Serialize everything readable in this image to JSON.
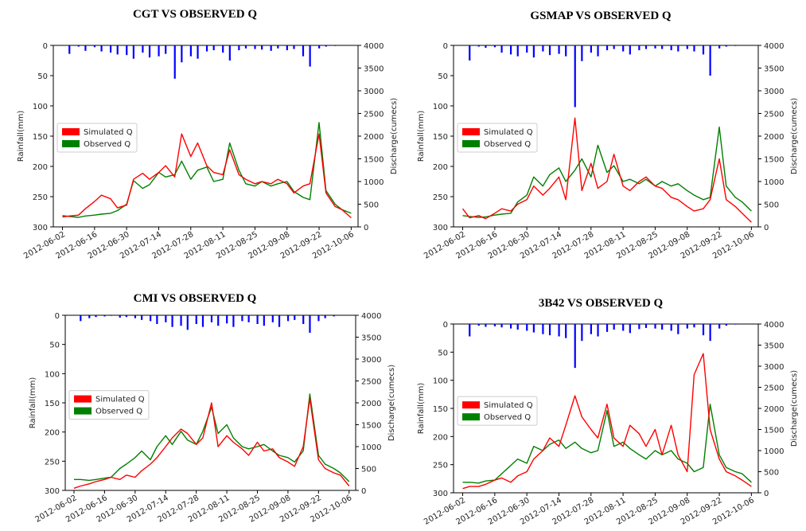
{
  "x_ticks": [
    "2012-06-02",
    "2012-06-16",
    "2012-06-30",
    "2012-07-14",
    "2012-07-28",
    "2012-08-11",
    "2012-08-25",
    "2012-09-08",
    "2012-09-22",
    "2012-10-06"
  ],
  "y_left_ticks": [
    "0",
    "50",
    "100",
    "150",
    "200",
    "250",
    "300"
  ],
  "y_right_ticks": [
    "0",
    "500",
    "1000",
    "1500",
    "2000",
    "2500",
    "3000",
    "3500",
    "4000"
  ],
  "colors": {
    "rain": "#0000ff",
    "simulated": "#ff0000",
    "observed": "#008000"
  },
  "chart_data": [
    {
      "type": "line",
      "title": "CGT VS OBSERVED Q",
      "ylabel": "Rainfall(mm)",
      "y2label": "Discharge(cumecs)",
      "legend": "center-left",
      "ylim": [
        300,
        0
      ],
      "y2lim": [
        0,
        4000
      ],
      "x": [
        "2012-06-02",
        "2012-06-05",
        "2012-06-09",
        "2012-06-12",
        "2012-06-16",
        "2012-06-19",
        "2012-06-23",
        "2012-06-26",
        "2012-06-30",
        "2012-07-03",
        "2012-07-07",
        "2012-07-10",
        "2012-07-14",
        "2012-07-17",
        "2012-07-21",
        "2012-07-24",
        "2012-07-28",
        "2012-07-31",
        "2012-08-04",
        "2012-08-07",
        "2012-08-11",
        "2012-08-14",
        "2012-08-18",
        "2012-08-21",
        "2012-08-25",
        "2012-08-28",
        "2012-09-01",
        "2012-09-04",
        "2012-09-08",
        "2012-09-11",
        "2012-09-15",
        "2012-09-18",
        "2012-09-22",
        "2012-09-25",
        "2012-09-29",
        "2012-10-02",
        "2012-10-06"
      ],
      "series": [
        {
          "name": "Simulated Q",
          "values": [
            220,
            240,
            260,
            400,
            560,
            700,
            620,
            420,
            480,
            1050,
            1180,
            1050,
            1200,
            1350,
            1100,
            2050,
            1550,
            1850,
            1350,
            1200,
            1150,
            1700,
            1150,
            1050,
            950,
            1000,
            950,
            1050,
            950,
            750,
            900,
            950,
            2050,
            750,
            450,
            380,
            200
          ]
        },
        {
          "name": "Observed Q",
          "values": [
            250,
            230,
            210,
            240,
            260,
            280,
            300,
            360,
            500,
            1020,
            850,
            930,
            1200,
            1100,
            1150,
            1450,
            1050,
            1250,
            1320,
            1000,
            1050,
            1850,
            1250,
            950,
            900,
            1000,
            900,
            950,
            1000,
            780,
            650,
            600,
            2300,
            800,
            500,
            380,
            300
          ]
        },
        {
          "name": "Rainfall",
          "values": [
            0,
            14,
            2,
            9,
            3,
            10,
            12,
            15,
            16,
            22,
            12,
            20,
            18,
            14,
            55,
            28,
            18,
            22,
            10,
            8,
            12,
            25,
            8,
            5,
            6,
            7,
            9,
            5,
            8,
            6,
            18,
            35,
            5,
            2,
            1,
            0,
            0
          ]
        }
      ]
    },
    {
      "type": "line",
      "title": "GSMAP VS OBSERVED Q",
      "ylabel": "Rainfall(mm)",
      "y2label": "Discharge(cumecs)",
      "legend": "center-left",
      "ylim": [
        300,
        0
      ],
      "y2lim": [
        0,
        4000
      ],
      "x": [
        "2012-06-02",
        "2012-06-05",
        "2012-06-09",
        "2012-06-12",
        "2012-06-16",
        "2012-06-19",
        "2012-06-23",
        "2012-06-26",
        "2012-06-30",
        "2012-07-03",
        "2012-07-07",
        "2012-07-10",
        "2012-07-14",
        "2012-07-17",
        "2012-07-21",
        "2012-07-24",
        "2012-07-28",
        "2012-07-31",
        "2012-08-04",
        "2012-08-07",
        "2012-08-11",
        "2012-08-14",
        "2012-08-18",
        "2012-08-21",
        "2012-08-25",
        "2012-08-28",
        "2012-09-01",
        "2012-09-04",
        "2012-09-08",
        "2012-09-11",
        "2012-09-15",
        "2012-09-18",
        "2012-09-22",
        "2012-09-25",
        "2012-09-29",
        "2012-10-02",
        "2012-10-06"
      ],
      "series": [
        {
          "name": "Simulated Q",
          "values": [
            400,
            200,
            250,
            180,
            300,
            400,
            350,
            500,
            600,
            900,
            700,
            850,
            1100,
            600,
            2400,
            800,
            1400,
            850,
            1000,
            1600,
            900,
            800,
            1000,
            1100,
            900,
            850,
            650,
            600,
            450,
            350,
            400,
            600,
            1500,
            600,
            450,
            300,
            100
          ]
        },
        {
          "name": "Observed Q",
          "values": [
            250,
            230,
            210,
            220,
            260,
            280,
            300,
            550,
            700,
            1100,
            900,
            1150,
            1300,
            1000,
            1250,
            1500,
            1100,
            1800,
            1200,
            1350,
            1000,
            1050,
            950,
            1050,
            900,
            1000,
            900,
            950,
            800,
            700,
            600,
            650,
            2200,
            900,
            650,
            550,
            350
          ]
        },
        {
          "name": "Rainfall",
          "values": [
            0,
            25,
            2,
            4,
            3,
            12,
            15,
            18,
            12,
            20,
            10,
            16,
            14,
            18,
            102,
            26,
            12,
            18,
            8,
            6,
            10,
            15,
            8,
            6,
            5,
            6,
            8,
            10,
            6,
            10,
            15,
            50,
            5,
            2,
            1,
            0,
            0
          ]
        }
      ]
    },
    {
      "type": "line",
      "title": "CMI VS OBSERVED Q",
      "ylabel": "Rainfall(mm)",
      "y2label": "Discharge(cumecs)",
      "legend": "center-left",
      "ylim": [
        300,
        0
      ],
      "y2lim": [
        0,
        4000
      ],
      "x": [
        "2012-06-02",
        "2012-06-05",
        "2012-06-09",
        "2012-06-12",
        "2012-06-16",
        "2012-06-19",
        "2012-06-23",
        "2012-06-26",
        "2012-06-30",
        "2012-07-03",
        "2012-07-07",
        "2012-07-10",
        "2012-07-14",
        "2012-07-17",
        "2012-07-21",
        "2012-07-24",
        "2012-07-28",
        "2012-07-31",
        "2012-08-04",
        "2012-08-07",
        "2012-08-11",
        "2012-08-14",
        "2012-08-18",
        "2012-08-21",
        "2012-08-25",
        "2012-08-28",
        "2012-09-01",
        "2012-09-04",
        "2012-09-08",
        "2012-09-11",
        "2012-09-15",
        "2012-09-18",
        "2012-09-22",
        "2012-09-25",
        "2012-09-29",
        "2012-10-02",
        "2012-10-06"
      ],
      "series": [
        {
          "name": "Simulated Q",
          "values": [
            50,
            100,
            150,
            200,
            250,
            300,
            250,
            350,
            300,
            450,
            600,
            750,
            1000,
            1200,
            1400,
            1300,
            1050,
            1200,
            2000,
            1000,
            1250,
            1100,
            950,
            800,
            1100,
            900,
            950,
            750,
            650,
            550,
            1000,
            2100,
            700,
            500,
            400,
            350,
            100
          ]
        },
        {
          "name": "Observed Q",
          "values": [
            250,
            250,
            230,
            250,
            280,
            300,
            500,
            600,
            750,
            900,
            700,
            1000,
            1250,
            1050,
            1350,
            1150,
            1050,
            1350,
            1900,
            1300,
            1500,
            1200,
            1000,
            950,
            1000,
            1050,
            900,
            800,
            750,
            650,
            900,
            2200,
            800,
            600,
            500,
            400,
            200
          ]
        },
        {
          "name": "Rainfall",
          "values": [
            0,
            10,
            5,
            3,
            2,
            1,
            4,
            3,
            5,
            8,
            10,
            15,
            12,
            20,
            18,
            25,
            15,
            20,
            12,
            18,
            14,
            20,
            10,
            12,
            15,
            18,
            12,
            20,
            10,
            8,
            15,
            30,
            10,
            5,
            2,
            0,
            0
          ]
        }
      ]
    },
    {
      "type": "line",
      "title": "3B42 VS OBSERVED Q",
      "ylabel": "Rainfall(mm)",
      "y2label": "Discharge(cumecs)",
      "legend": "center-left",
      "ylim": [
        300,
        0
      ],
      "y2lim": [
        0,
        4000
      ],
      "x": [
        "2012-06-02",
        "2012-06-05",
        "2012-06-09",
        "2012-06-12",
        "2012-06-16",
        "2012-06-19",
        "2012-06-23",
        "2012-06-26",
        "2012-06-30",
        "2012-07-03",
        "2012-07-07",
        "2012-07-10",
        "2012-07-14",
        "2012-07-17",
        "2012-07-21",
        "2012-07-24",
        "2012-07-28",
        "2012-07-31",
        "2012-08-04",
        "2012-08-07",
        "2012-08-11",
        "2012-08-14",
        "2012-08-18",
        "2012-08-21",
        "2012-08-25",
        "2012-08-28",
        "2012-09-01",
        "2012-09-04",
        "2012-09-08",
        "2012-09-11",
        "2012-09-15",
        "2012-09-18",
        "2012-09-22",
        "2012-09-25",
        "2012-09-29",
        "2012-10-02",
        "2012-10-06"
      ],
      "series": [
        {
          "name": "Simulated Q",
          "values": [
            100,
            150,
            150,
            200,
            300,
            350,
            250,
            400,
            500,
            800,
            1000,
            1300,
            1100,
            1600,
            2300,
            1800,
            1500,
            1300,
            2100,
            1300,
            1100,
            1600,
            1400,
            1100,
            1500,
            900,
            1600,
            900,
            500,
            2800,
            3300,
            1500,
            800,
            500,
            400,
            300,
            150
          ]
        },
        {
          "name": "Observed Q",
          "values": [
            250,
            250,
            230,
            280,
            300,
            450,
            650,
            800,
            700,
            1100,
            1000,
            1150,
            1250,
            1050,
            1200,
            1050,
            950,
            1000,
            1950,
            1100,
            1200,
            1050,
            900,
            800,
            1000,
            900,
            1000,
            800,
            700,
            500,
            600,
            2100,
            900,
            600,
            500,
            450,
            250
          ]
        },
        {
          "name": "Rainfall",
          "values": [
            0,
            22,
            3,
            5,
            4,
            6,
            8,
            10,
            12,
            15,
            18,
            20,
            22,
            25,
            78,
            30,
            18,
            22,
            14,
            10,
            12,
            16,
            9,
            7,
            8,
            10,
            12,
            18,
            8,
            6,
            20,
            30,
            8,
            3,
            1,
            0,
            0
          ]
        }
      ]
    }
  ]
}
